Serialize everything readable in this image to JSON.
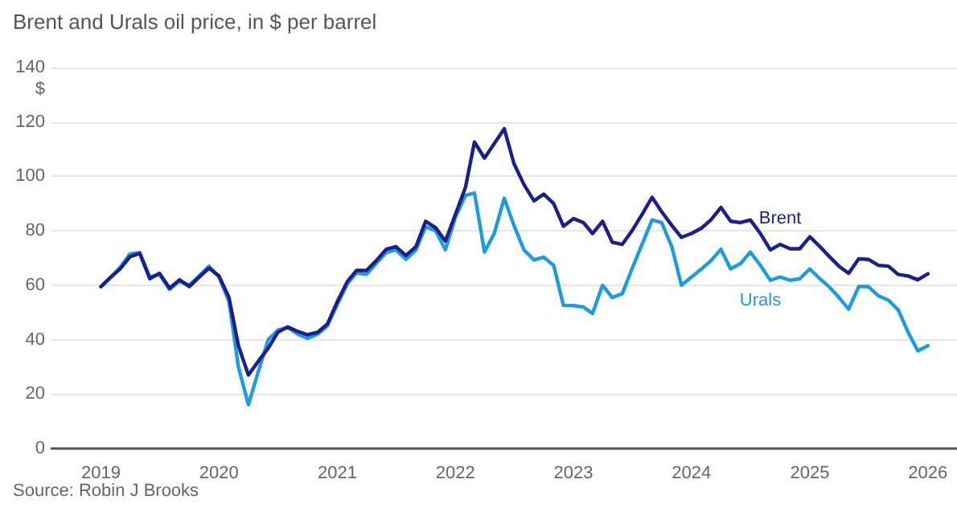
{
  "chart_data": {
    "type": "line",
    "title": "Brent and Urals oil price, in $ per barrel",
    "ylabel": "$",
    "annotations": [
      "Source: Robin J Brooks"
    ],
    "x": [
      "2019-01",
      "2019-02",
      "2019-03",
      "2019-04",
      "2019-05",
      "2019-06",
      "2019-07",
      "2019-08",
      "2019-09",
      "2019-10",
      "2019-11",
      "2019-12",
      "2020-01",
      "2020-02",
      "2020-03",
      "2020-04",
      "2020-05",
      "2020-06",
      "2020-07",
      "2020-08",
      "2020-09",
      "2020-10",
      "2020-11",
      "2020-12",
      "2021-01",
      "2021-02",
      "2021-03",
      "2021-04",
      "2021-05",
      "2021-06",
      "2021-07",
      "2021-08",
      "2021-09",
      "2021-10",
      "2021-11",
      "2021-12",
      "2022-01",
      "2022-02",
      "2022-03",
      "2022-04",
      "2022-05",
      "2022-06",
      "2022-07",
      "2022-08",
      "2022-09",
      "2022-10",
      "2022-11",
      "2022-12",
      "2023-01",
      "2023-02",
      "2023-03",
      "2023-04",
      "2023-05",
      "2023-06",
      "2023-07",
      "2023-08",
      "2023-09",
      "2023-10",
      "2023-11",
      "2023-12",
      "2024-01",
      "2024-02",
      "2024-03",
      "2024-04",
      "2024-05",
      "2024-06",
      "2024-07",
      "2024-08",
      "2024-09",
      "2024-10",
      "2024-11",
      "2024-12",
      "2025-01",
      "2025-02",
      "2025-03",
      "2025-04",
      "2025-05",
      "2025-06",
      "2025-07",
      "2025-08",
      "2025-09",
      "2025-10",
      "2025-11",
      "2025-12",
      "2026-01"
    ],
    "series": [
      {
        "name": "Brent",
        "color": "#1a1f8c",
        "values": [
          59.5,
          63,
          66,
          70.5,
          71.7,
          62.4,
          64.4,
          58.9,
          62,
          59.5,
          63,
          66.3,
          63.4,
          55.5,
          37.8,
          27,
          32,
          36.8,
          42.7,
          44.7,
          43,
          41.8,
          42.7,
          45.7,
          54,
          61.4,
          65.4,
          65.4,
          69,
          73.2,
          74.2,
          70.9,
          74.2,
          83.5,
          81.1,
          76.2,
          86,
          95.9,
          112.6,
          106.7,
          112,
          117.5,
          104.7,
          97,
          91,
          93.5,
          90,
          81.7,
          84.5,
          83,
          79,
          83.5,
          75.8,
          75,
          80,
          86,
          92.3,
          87,
          82,
          77.6,
          79,
          81,
          84,
          88.6,
          83.5,
          83,
          84,
          79,
          73,
          75,
          73.4,
          73.4,
          77.8,
          74.2,
          70.7,
          67,
          64.4,
          69.7,
          69.5,
          67.3,
          67,
          64,
          63.4,
          62,
          64.2
        ]
      },
      {
        "name": "Urals",
        "color": "#1e9be0",
        "values": [
          59.5,
          63,
          66.5,
          71.5,
          72,
          63,
          64,
          58.5,
          61.5,
          60,
          63.5,
          67,
          63,
          54,
          30,
          16.1,
          28,
          40,
          43.5,
          44.5,
          42,
          40.5,
          42,
          45,
          53,
          60.5,
          64.5,
          64,
          68,
          72,
          73,
          69.5,
          73,
          81.5,
          80,
          73,
          85,
          93,
          93.9,
          72.2,
          79,
          92,
          82,
          73,
          69.3,
          70.3,
          67.3,
          52.6,
          52.5,
          52,
          49.6,
          60,
          55.5,
          56.9,
          66,
          75,
          84,
          83,
          74.2,
          60,
          63,
          66,
          69,
          73.2,
          66,
          68,
          72.2,
          67.3,
          61.8,
          63,
          61.8,
          62.4,
          66,
          62.4,
          59.5,
          55.5,
          51.2,
          59.5,
          59.5,
          56.1,
          54.5,
          51,
          42.7,
          35.9,
          37.8
        ]
      }
    ],
    "xlim": [
      "2018-08",
      "2026-04"
    ],
    "xticks": [
      {
        "value": "2019-01",
        "label": "2019"
      },
      {
        "value": "2020-01",
        "label": "2020"
      },
      {
        "value": "2021-01",
        "label": "2021"
      },
      {
        "value": "2022-01",
        "label": "2022"
      },
      {
        "value": "2023-01",
        "label": "2023"
      },
      {
        "value": "2024-01",
        "label": "2024"
      },
      {
        "value": "2025-01",
        "label": "2025"
      },
      {
        "value": "2026-01",
        "label": "2026"
      }
    ],
    "ylim": [
      0,
      140
    ],
    "yticks": [
      0,
      20,
      40,
      60,
      80,
      100,
      120,
      140
    ],
    "grid": "y",
    "legend": false,
    "marker": "none",
    "line_style": "solid"
  }
}
